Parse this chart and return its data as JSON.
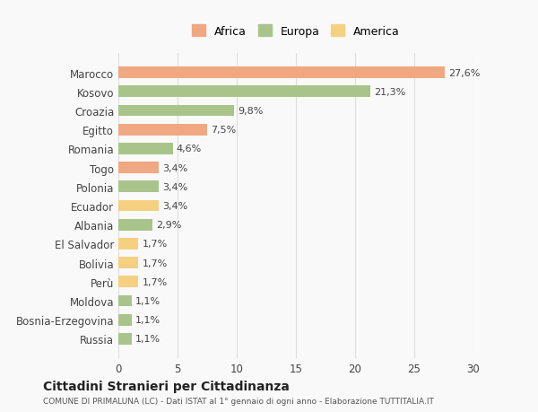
{
  "categories": [
    "Marocco",
    "Kosovo",
    "Croazia",
    "Egitto",
    "Romania",
    "Togo",
    "Polonia",
    "Ecuador",
    "Albania",
    "El Salvador",
    "Bolivia",
    "Perù",
    "Moldova",
    "Bosnia-Erzegovina",
    "Russia"
  ],
  "values": [
    27.6,
    21.3,
    9.8,
    7.5,
    4.6,
    3.4,
    3.4,
    3.4,
    2.9,
    1.7,
    1.7,
    1.7,
    1.1,
    1.1,
    1.1
  ],
  "colors": [
    "#F0A882",
    "#A8C48A",
    "#A8C48A",
    "#F0A882",
    "#A8C48A",
    "#F0A882",
    "#A8C48A",
    "#F5D080",
    "#A8C48A",
    "#F5D080",
    "#F5D080",
    "#F5D080",
    "#A8C48A",
    "#A8C48A",
    "#A8C48A"
  ],
  "labels": [
    "27,6%",
    "21,3%",
    "9,8%",
    "7,5%",
    "4,6%",
    "3,4%",
    "3,4%",
    "3,4%",
    "2,9%",
    "1,7%",
    "1,7%",
    "1,7%",
    "1,1%",
    "1,1%",
    "1,1%"
  ],
  "legend": [
    {
      "label": "Africa",
      "color": "#F0A882"
    },
    {
      "label": "Europa",
      "color": "#A8C48A"
    },
    {
      "label": "America",
      "color": "#F5D080"
    }
  ],
  "xlim": [
    0,
    30
  ],
  "xticks": [
    0,
    5,
    10,
    15,
    20,
    25,
    30
  ],
  "title": "Cittadini Stranieri per Cittadinanza",
  "subtitle": "COMUNE DI PRIMALUNA (LC) - Dati ISTAT al 1° gennaio di ogni anno - Elaborazione TUTTITALIA.IT",
  "background_color": "#f9f9f9",
  "grid_color": "#dddddd"
}
